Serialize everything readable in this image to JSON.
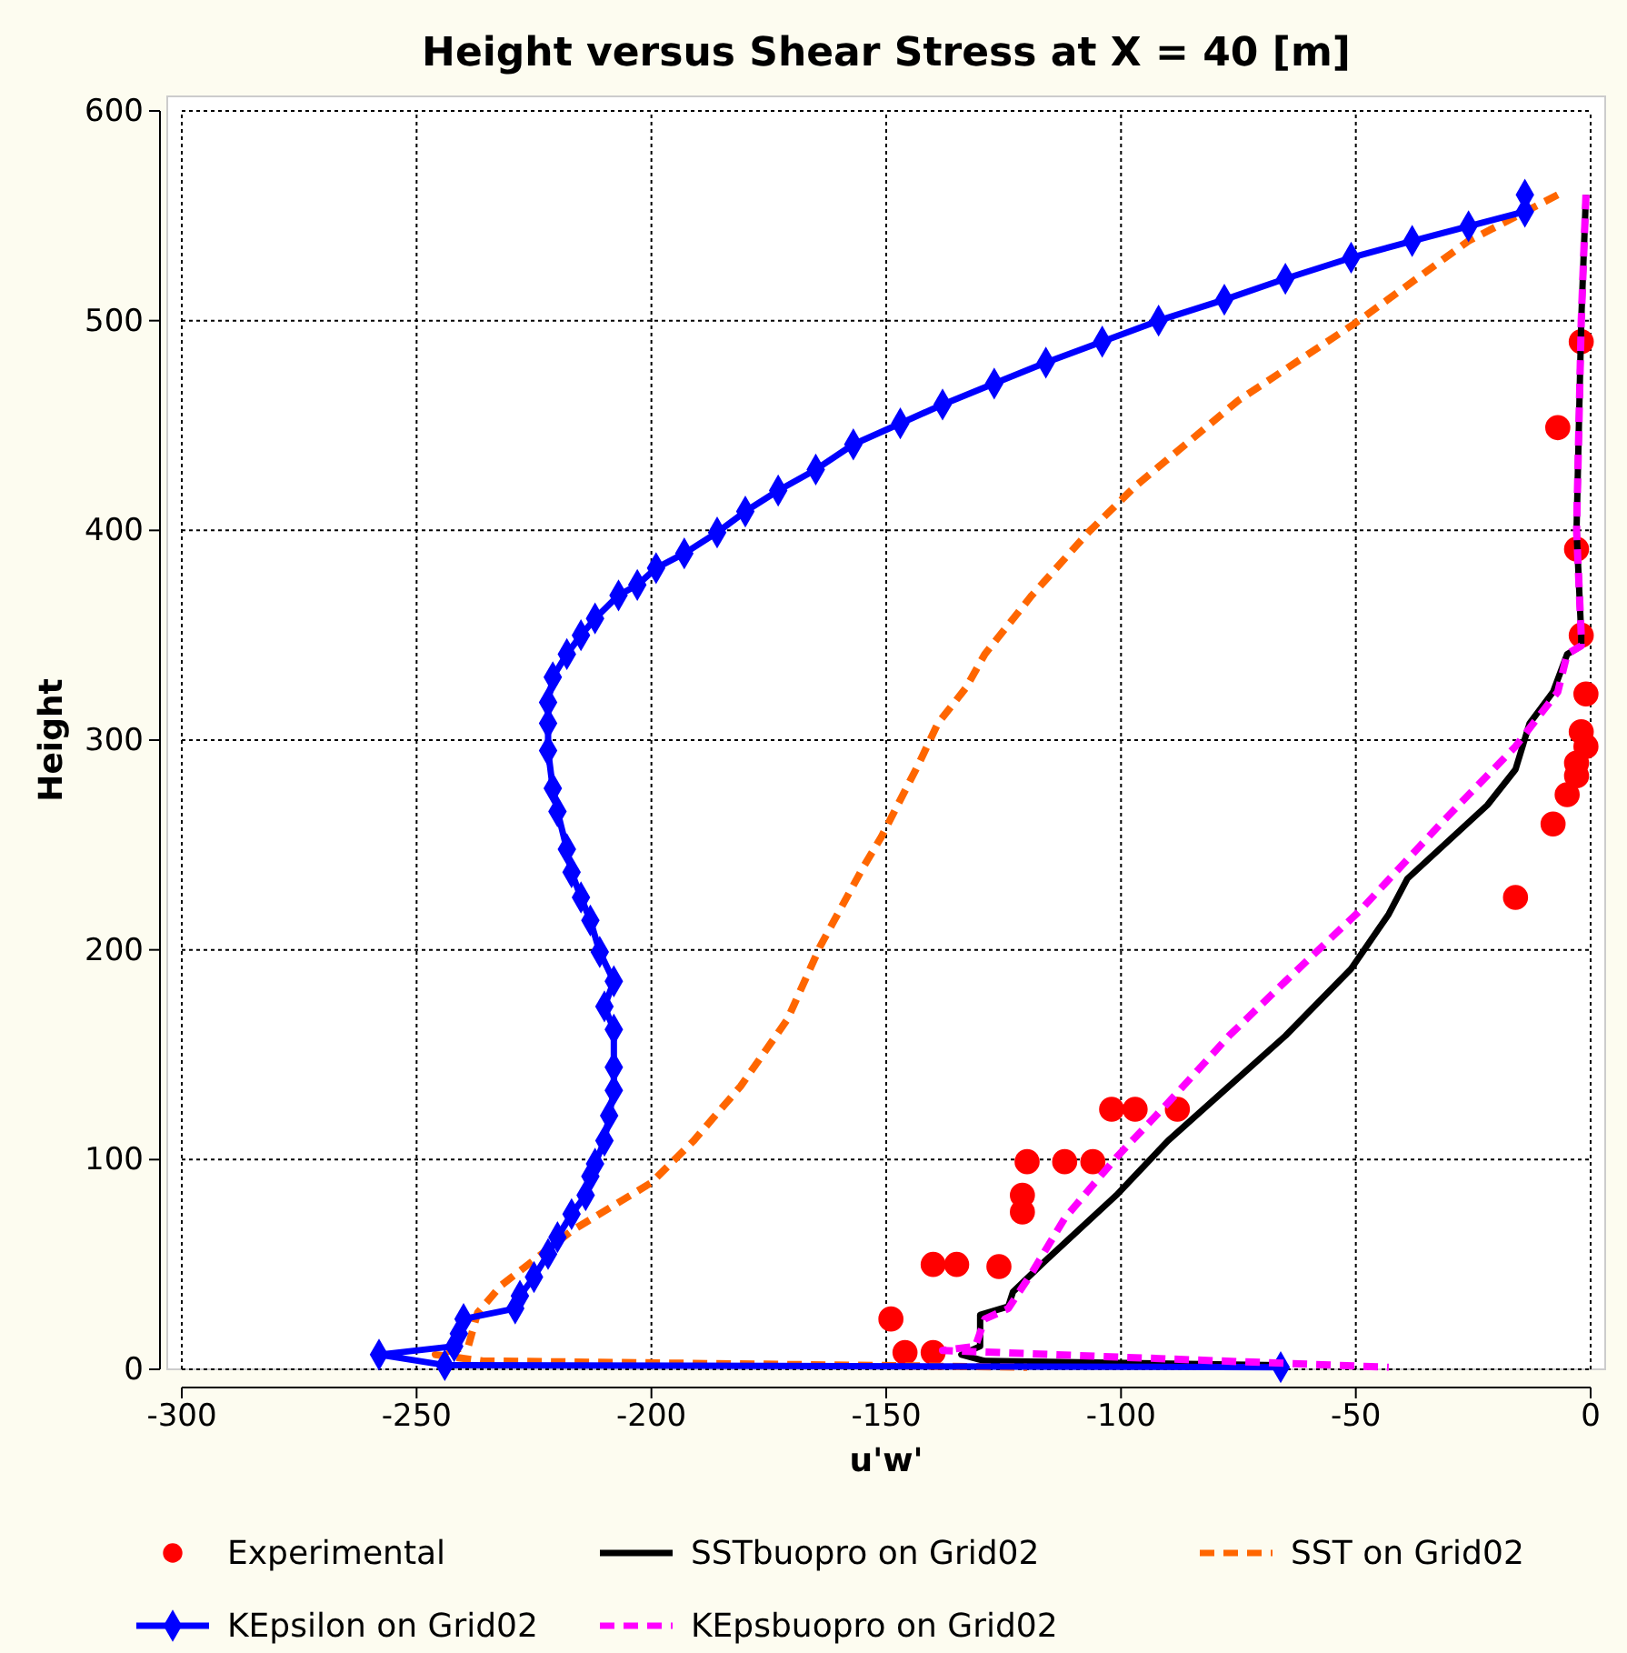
{
  "chart_data": {
    "type": "line",
    "title": "Height versus Shear Stress at X = 40 [m]",
    "xlabel": "u'w'",
    "ylabel": "Height",
    "xlim": [
      -300,
      0
    ],
    "ylim": [
      0,
      600
    ],
    "xticks": [
      -300,
      -250,
      -200,
      -150,
      -100,
      -50,
      0
    ],
    "yticks": [
      0,
      100,
      200,
      300,
      400,
      500,
      600
    ],
    "grid": true,
    "legend": "bottom",
    "series": [
      {
        "name": "Experimental",
        "type": "scatter",
        "marker": "circle",
        "color": "#ff0000",
        "x": [
          -2,
          -7,
          -3,
          -2,
          -1,
          -2,
          -1,
          -3,
          -3,
          -5,
          -8,
          -16,
          -102,
          -97,
          -88,
          -120,
          -112,
          -106,
          -121,
          -121,
          -140,
          -135,
          -126,
          -149,
          -146,
          -140
        ],
        "values": [
          490,
          449,
          391,
          350,
          322,
          304,
          297,
          289,
          283,
          274,
          260,
          225,
          124,
          124,
          124,
          99,
          99,
          99,
          83,
          75,
          50,
          50,
          49,
          24,
          8,
          8
        ]
      },
      {
        "name": "SSTbuopro on Grid02",
        "marker": "none",
        "line_style": "solid",
        "color": "#000000",
        "x": [
          -1,
          -2,
          -3,
          -2,
          -2,
          -5,
          -8,
          -13,
          -16,
          -22,
          -39,
          -43,
          -51,
          -65,
          -77,
          -90,
          -101,
          -116,
          -123,
          -124,
          -130,
          -130,
          -134,
          -129,
          -66
        ],
        "values": [
          560,
          500,
          400,
          350,
          345,
          341,
          323,
          308,
          286,
          269,
          234,
          217,
          191,
          159,
          135,
          109,
          83,
          52,
          37,
          30,
          26,
          11,
          7,
          4,
          2
        ]
      },
      {
        "name": "SST on Grid02",
        "marker": "none",
        "line_style": "dashed",
        "color": "#ff6600",
        "x": [
          -7,
          -26,
          -50,
          -75,
          -97,
          -107,
          -119,
          -129,
          -133,
          -139,
          -143,
          -151,
          -155,
          -164,
          -171,
          -181,
          -191,
          -200,
          -217,
          -232,
          -237,
          -239,
          -246,
          -236,
          -120
        ],
        "values": [
          560,
          538,
          499,
          462,
          421,
          399,
          369,
          341,
          325,
          308,
          289,
          254,
          239,
          202,
          167,
          135,
          109,
          89,
          66,
          40,
          27,
          11,
          7,
          4,
          1
        ]
      },
      {
        "name": "KEpsilon on Grid02",
        "marker": "diamond",
        "line_style": "solid",
        "color": "#0000ff",
        "x": [
          -14,
          -14,
          -26,
          -38,
          -51,
          -65,
          -78,
          -92,
          -104,
          -116,
          -127,
          -138,
          -147,
          -157,
          -165,
          -173,
          -180,
          -186,
          -193,
          -199,
          -203,
          -207,
          -212,
          -215,
          -218,
          -221,
          -222,
          -222,
          -222,
          -221,
          -220,
          -218,
          -217,
          -215,
          -213,
          -211,
          -208,
          -210,
          -208,
          -208,
          -208,
          -209,
          -210,
          -212,
          -213,
          -214,
          -217,
          -220,
          -222,
          -225,
          -228,
          -229,
          -240,
          -241,
          -242,
          -258,
          -244,
          -66
        ],
        "values": [
          560,
          552,
          545,
          538,
          530,
          520,
          510,
          500,
          490,
          480,
          470,
          460,
          451,
          441,
          429,
          419,
          409,
          399,
          389,
          382,
          374,
          369,
          358,
          350,
          341,
          330,
          318,
          308,
          295,
          277,
          266,
          248,
          237,
          225,
          214,
          199,
          185,
          173,
          162,
          144,
          133,
          121,
          109,
          98,
          92,
          83,
          74,
          63,
          55,
          44,
          35,
          29,
          24,
          17,
          11,
          7,
          2,
          1
        ]
      },
      {
        "name": "KEpsbuopro on Grid02",
        "marker": "none",
        "line_style": "dashed",
        "color": "#ff00ff",
        "x": [
          -1,
          -2,
          -3,
          -2,
          -2,
          -5,
          -7,
          -16,
          -32,
          -49,
          -65,
          -77,
          -90,
          -101,
          -112,
          -119,
          -124,
          -129,
          -131,
          -138,
          -43
        ],
        "values": [
          560,
          500,
          400,
          350,
          345,
          341,
          323,
          297,
          260,
          219,
          185,
          159,
          127,
          101,
          72,
          46,
          29,
          24,
          11,
          9,
          1
        ]
      }
    ]
  }
}
